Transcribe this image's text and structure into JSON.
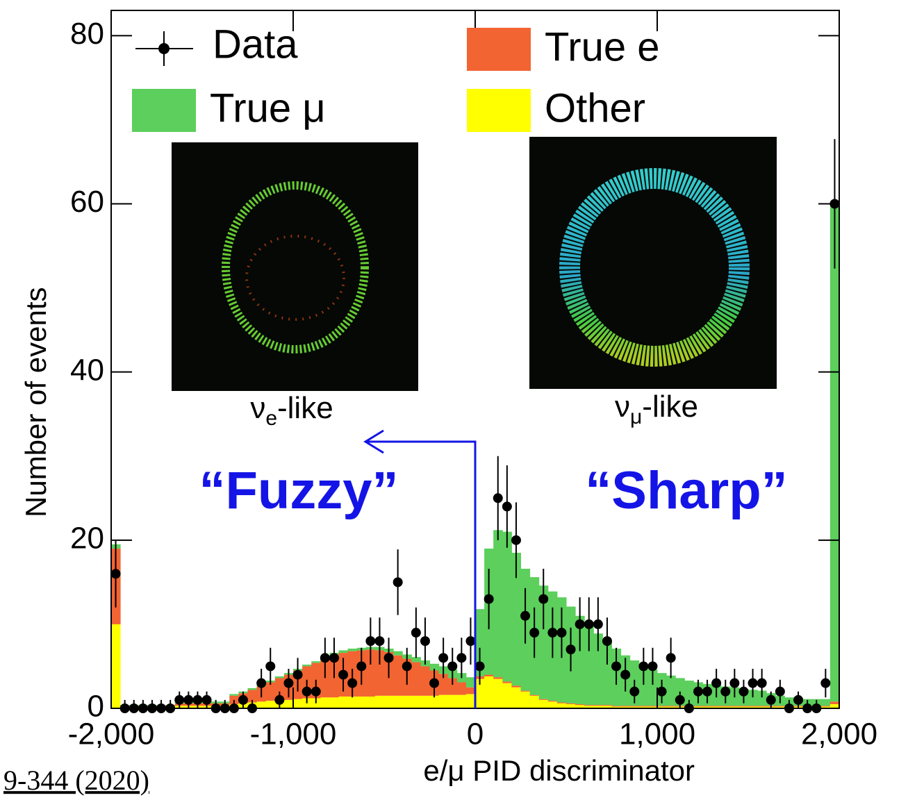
{
  "chart_data": {
    "type": "histogram",
    "xlabel": "e/μ PID discriminator",
    "ylabel": "Number of events",
    "bins": [
      -2000,
      -1950,
      -1900,
      -1850,
      -1800,
      -1750,
      -1700,
      -1650,
      -1600,
      -1550,
      -1500,
      -1450,
      -1400,
      -1350,
      -1300,
      -1250,
      -1200,
      -1150,
      -1100,
      -1050,
      -1000,
      -950,
      -900,
      -850,
      -800,
      -750,
      -700,
      -650,
      -600,
      -550,
      -500,
      -450,
      -400,
      -350,
      -300,
      -250,
      -200,
      -150,
      -100,
      -50,
      0,
      50,
      100,
      150,
      200,
      250,
      300,
      350,
      400,
      450,
      500,
      550,
      600,
      650,
      700,
      750,
      800,
      850,
      900,
      950,
      1000,
      1050,
      1100,
      1150,
      1200,
      1250,
      1300,
      1350,
      1400,
      1450,
      1500,
      1550,
      1600,
      1650,
      1700,
      1750,
      1800,
      1850,
      1900,
      1950,
      2000
    ],
    "xlim": [
      -2000,
      2000
    ],
    "ylim": [
      0,
      83
    ],
    "xticks": [
      {
        "value": -2000,
        "label": "-2,000"
      },
      {
        "value": -1000,
        "label": "-1,000"
      },
      0,
      {
        "value": 1000,
        "label": "1,000"
      },
      {
        "value": 2000,
        "label": "2,000"
      }
    ],
    "yticks": [
      0,
      20,
      40,
      60,
      80
    ],
    "stacked": true,
    "series": [
      {
        "name": "Other",
        "color": "#ffff00",
        "values": [
          10,
          0.2,
          0.2,
          0.2,
          0.2,
          0.2,
          0.2,
          0.3,
          0.3,
          0.3,
          0.3,
          0.3,
          0.3,
          0.5,
          0.6,
          0.7,
          0.8,
          0.9,
          1,
          1,
          1.1,
          1.2,
          1.2,
          1.3,
          1.3,
          1.4,
          1.4,
          1.4,
          1.4,
          1.5,
          1.5,
          1.5,
          1.5,
          1.5,
          1.5,
          1.5,
          1.6,
          1.6,
          1.6,
          1.7,
          3.5,
          3.8,
          3.5,
          3,
          2.5,
          2,
          1.5,
          1,
          0.8,
          0.6,
          0.5,
          0.4,
          0.3,
          0.3,
          0.3,
          0.2,
          0.2,
          0.2,
          0.2,
          0.2,
          0.2,
          0.2,
          0.2,
          0.2,
          0.2,
          0.2,
          0.2,
          0.2,
          0.2,
          0.2,
          0.2,
          0.2,
          0.2,
          0.2,
          0.2,
          0.2,
          0.2,
          0.2,
          0.2,
          0.5
        ]
      },
      {
        "name": "True e",
        "color": "#f26432",
        "values": [
          9,
          0.1,
          0.1,
          0.1,
          0.1,
          0.1,
          0.1,
          0.3,
          0.3,
          0.3,
          0.3,
          0.3,
          0.3,
          1,
          1.2,
          1.5,
          1.8,
          2.2,
          2.6,
          3,
          3.4,
          3.8,
          4.2,
          4.6,
          5,
          5.2,
          5.4,
          5.5,
          5.6,
          5.4,
          5.2,
          4.8,
          4.4,
          4,
          3.5,
          3,
          2.5,
          2,
          1.5,
          0.8,
          0.3,
          0.2,
          0.2,
          0.2,
          0.2,
          0.1,
          0.1,
          0.1,
          0.1,
          0.1,
          0.1,
          0.1,
          0.1,
          0.1,
          0.1,
          0.1,
          0.1,
          0.1,
          0.1,
          0.1,
          0.1,
          0.1,
          0.1,
          0.1,
          0.1,
          0.1,
          0.1,
          0.1,
          0.1,
          0.1,
          0.1,
          0.1,
          0.1,
          0.1,
          0.1,
          0.1,
          0.1,
          0.1,
          0.1,
          0.3
        ]
      },
      {
        "name": "True μ",
        "color": "#5ccf5c",
        "values": [
          0.5,
          0.1,
          0.1,
          0.1,
          0.1,
          0.1,
          0.1,
          0.2,
          0.2,
          0.2,
          0.2,
          0.2,
          0.2,
          0.2,
          0.2,
          0.2,
          0.2,
          0.2,
          0.2,
          0.2,
          0.2,
          0.2,
          0.2,
          0.3,
          0.3,
          0.3,
          0.3,
          0.3,
          0.3,
          0.4,
          0.4,
          0.5,
          0.5,
          0.6,
          0.7,
          0.8,
          0.9,
          1,
          1.1,
          1.2,
          8,
          15,
          17.5,
          17.8,
          15.8,
          14.5,
          14,
          13.5,
          13,
          12.5,
          11.5,
          10.5,
          9.5,
          8.5,
          7.5,
          6.8,
          6,
          5.4,
          4.8,
          4.3,
          3.9,
          3.6,
          3.3,
          3,
          2.8,
          2.6,
          2.5,
          2.3,
          2.2,
          2,
          1.9,
          1.8,
          1.5,
          1.2,
          1,
          0.9,
          0.8,
          0.8,
          0.8,
          59.5
        ]
      }
    ],
    "data": {
      "name": "Data",
      "color": "#000000",
      "values": [
        16,
        0,
        0,
        0,
        0,
        0,
        0,
        1,
        1,
        1,
        1,
        0,
        0,
        0,
        1,
        0,
        3,
        5,
        1,
        3,
        4,
        2,
        2,
        6,
        6,
        4,
        3,
        5,
        8,
        8,
        6,
        15,
        5,
        9,
        8,
        3,
        6,
        5,
        6,
        8,
        5,
        13,
        25,
        24,
        20,
        11,
        9,
        13,
        9,
        9,
        7,
        10,
        10,
        10,
        8,
        5,
        4,
        2,
        5,
        5,
        2,
        6,
        1,
        0,
        2,
        2,
        3,
        2,
        3,
        2,
        3,
        3,
        1,
        2,
        0,
        1,
        0,
        0,
        3,
        60
      ],
      "errors": [
        4,
        1,
        1,
        1,
        1,
        1,
        1,
        1,
        1,
        1,
        1,
        1,
        1,
        1,
        1,
        1,
        1.7,
        2.2,
        1,
        1.7,
        2,
        1.4,
        1.4,
        2.4,
        2.4,
        2,
        1.7,
        2.2,
        2.8,
        2.8,
        2.4,
        3.9,
        2.2,
        3,
        2.8,
        1.7,
        2.4,
        2.2,
        2.4,
        2.8,
        2.2,
        3.6,
        5,
        4.9,
        4.5,
        3.3,
        3,
        3.6,
        3,
        3,
        2.6,
        3.2,
        3.2,
        3.2,
        2.8,
        2.2,
        2,
        1.4,
        2.2,
        2.2,
        1.4,
        2.4,
        1,
        1,
        1.4,
        1.4,
        1.7,
        1.4,
        1.7,
        1.4,
        1.7,
        1.7,
        1,
        1.4,
        1,
        1,
        1,
        1,
        1.7,
        7.7
      ]
    },
    "annotations": [
      {
        "text": "“Fuzzy”"
      },
      {
        "text": "“Sharp”"
      }
    ],
    "insets": [
      {
        "symbol": "ν",
        "sub": "e",
        "suffix": "-like"
      },
      {
        "symbol": "ν",
        "sub": "μ",
        "suffix": "-like"
      }
    ]
  },
  "footer": "9-344 (2020)"
}
